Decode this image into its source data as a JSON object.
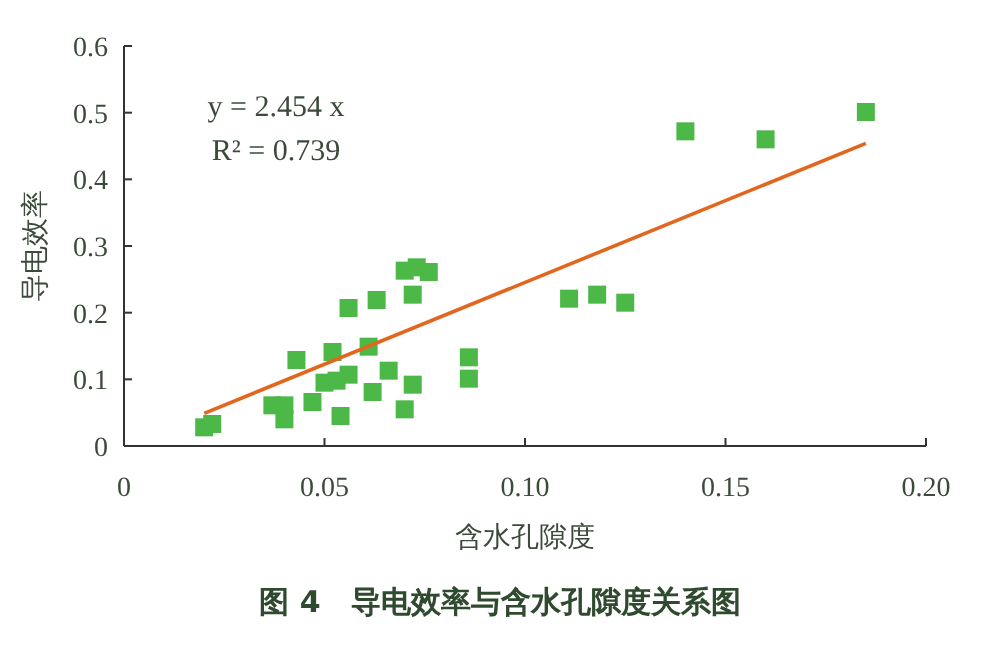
{
  "chart_data": {
    "type": "scatter",
    "title": "图 4　导电效率与含水孔隙度关系图",
    "xlabel": "含水孔隙度",
    "ylabel": "导电效率",
    "annotations": [
      "y = 2.454 x",
      "R² = 0.739"
    ],
    "xlim": [
      0,
      0.2
    ],
    "xticks": [
      0,
      0.05,
      {
        "value": 0.1,
        "label": "0.10"
      },
      0.15,
      {
        "value": 0.2,
        "label": "0.20"
      }
    ],
    "ylim": [
      0,
      0.6
    ],
    "yticks": [
      0,
      0.1,
      0.2,
      0.3,
      0.4,
      0.5,
      0.6
    ],
    "grid": false,
    "series": [
      {
        "color": "#4cb848",
        "marker": "square",
        "x": [
          0.02,
          0.022,
          0.037,
          0.04,
          0.04,
          0.043,
          0.047,
          0.05,
          0.052,
          0.053,
          0.054,
          0.056,
          0.056,
          0.061,
          0.062,
          0.063,
          0.066,
          0.07,
          0.073,
          0.076,
          0.072,
          0.07,
          0.072,
          0.086,
          0.086,
          0.111,
          0.118,
          0.125,
          0.14,
          0.16,
          0.185
        ],
        "values": [
          0.028,
          0.033,
          0.061,
          0.061,
          0.04,
          0.129,
          0.066,
          0.095,
          0.141,
          0.098,
          0.045,
          0.107,
          0.207,
          0.149,
          0.081,
          0.219,
          0.113,
          0.263,
          0.268,
          0.261,
          0.227,
          0.055,
          0.092,
          0.133,
          0.101,
          0.221,
          0.227,
          0.215,
          0.472,
          0.46,
          0.501
        ]
      },
      {
        "type": "line",
        "color": "#e2661e",
        "marker": "none",
        "x": [
          0.02,
          0.185
        ],
        "values": [
          0.049,
          0.454
        ]
      }
    ]
  }
}
